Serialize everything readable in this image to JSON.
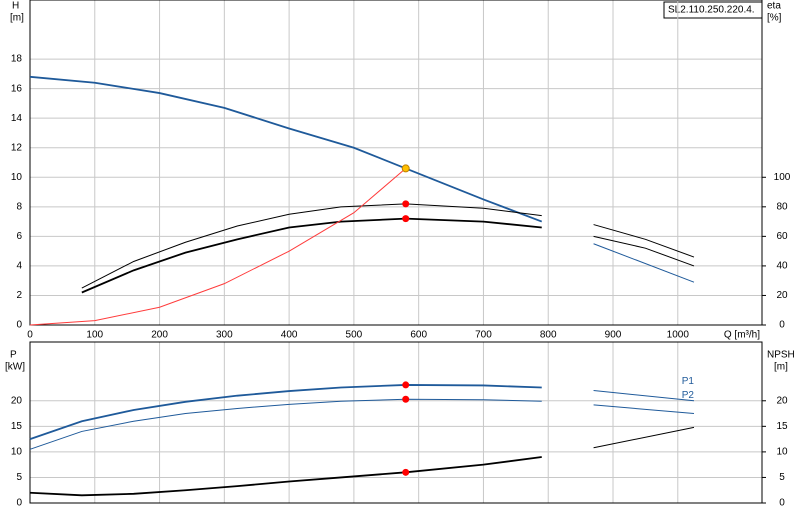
{
  "chart_data": [
    {
      "type": "line",
      "model": "SL2.110.250.220.4.",
      "y_label": "H",
      "y_unit": "[m]",
      "y2_label": "eta",
      "y2_unit": "[%]",
      "x_label": "Q [m³/h]",
      "xlim": [
        0,
        1130
      ],
      "xticks": [
        0,
        100,
        200,
        300,
        400,
        500,
        600,
        700,
        800,
        900,
        1000
      ],
      "show_xtick_labels": true,
      "ylim": [
        0,
        22
      ],
      "yticks": [
        0,
        2,
        4,
        6,
        8,
        10,
        12,
        14,
        16,
        18
      ],
      "y2lim": [
        0,
        220
      ],
      "y2ticks": [
        0,
        20,
        40,
        60,
        80,
        100
      ],
      "grid": true,
      "series": [
        {
          "color": "#1f5a9a",
          "width": 1.8,
          "x": [
            0,
            100,
            200,
            300,
            400,
            500,
            580,
            700,
            790
          ],
          "values": [
            16.8,
            16.4,
            15.7,
            14.7,
            13.3,
            12.0,
            10.6,
            8.5,
            7.0
          ]
        },
        {
          "color": "#000000",
          "width": 1,
          "axis": "y2",
          "x": [
            80,
            160,
            240,
            320,
            400,
            480,
            580,
            700,
            790
          ],
          "values": [
            25,
            43,
            56,
            67,
            75,
            80,
            82,
            79,
            74
          ]
        },
        {
          "color": "#000000",
          "width": 1.8,
          "axis": "y2",
          "x": [
            80,
            160,
            240,
            320,
            400,
            480,
            580,
            700,
            790
          ],
          "values": [
            22,
            37,
            49,
            58,
            66,
            70,
            72,
            70,
            66
          ]
        },
        {
          "color": "#ff3b3b",
          "width": 1,
          "x": [
            0,
            100,
            200,
            300,
            400,
            500,
            580
          ],
          "values": [
            0,
            0.3,
            1.2,
            2.8,
            5.0,
            7.6,
            10.6
          ]
        },
        {
          "color": "#000000",
          "width": 1,
          "x": [
            870,
            950,
            1025
          ],
          "values": [
            6.8,
            5.8,
            4.6
          ]
        },
        {
          "color": "#000000",
          "width": 1,
          "x": [
            870,
            950,
            1025
          ],
          "values": [
            6.0,
            5.2,
            4.0
          ]
        },
        {
          "color": "#1f5a9a",
          "width": 1,
          "x": [
            870,
            1025
          ],
          "values": [
            5.5,
            2.9
          ]
        }
      ],
      "markers": [
        {
          "x": 580,
          "y": 10.6,
          "color": "#ffc000"
        },
        {
          "x": 580,
          "y": 82,
          "color": "#ff0000",
          "axis": "y2"
        },
        {
          "x": 580,
          "y": 72,
          "color": "#ff0000",
          "axis": "y2"
        }
      ]
    },
    {
      "type": "line",
      "y_label": "P",
      "y_unit": "[kW]",
      "y2_label": "NPSH",
      "y2_unit": "[m]",
      "xlim": [
        0,
        1130
      ],
      "xticks": [
        0,
        100,
        200,
        300,
        400,
        500,
        600,
        700,
        800,
        900,
        1000
      ],
      "show_xtick_labels": false,
      "ylim": [
        0,
        31.5
      ],
      "yticks": [
        0,
        5,
        10,
        15,
        20
      ],
      "y2lim": [
        0,
        31.5
      ],
      "y2ticks": [
        0,
        5,
        10,
        15,
        20
      ],
      "grid": true,
      "series": [
        {
          "name": "P1",
          "color": "#1f5a9a",
          "width": 1.8,
          "x": [
            0,
            80,
            160,
            240,
            320,
            400,
            480,
            580,
            700,
            790
          ],
          "values": [
            12.5,
            16,
            18.2,
            19.8,
            21,
            21.9,
            22.6,
            23.1,
            23.0,
            22.6
          ]
        },
        {
          "color": "#1f5a9a",
          "width": 1,
          "x": [
            870,
            1025
          ],
          "values": [
            22,
            20
          ]
        },
        {
          "name": "P2",
          "color": "#1f5a9a",
          "width": 1,
          "x": [
            0,
            80,
            160,
            240,
            320,
            400,
            480,
            580,
            700,
            790
          ],
          "values": [
            10.5,
            14,
            16,
            17.5,
            18.5,
            19.3,
            19.9,
            20.3,
            20.2,
            19.9
          ]
        },
        {
          "color": "#1f5a9a",
          "width": 1,
          "x": [
            870,
            1025
          ],
          "values": [
            19.2,
            17.5
          ]
        },
        {
          "color": "#000000",
          "width": 1.8,
          "axis": "y2",
          "x": [
            0,
            80,
            160,
            240,
            320,
            400,
            480,
            580,
            700,
            790
          ],
          "values": [
            2,
            1.5,
            1.8,
            2.5,
            3.3,
            4.2,
            5.0,
            6.0,
            7.5,
            9.0
          ]
        },
        {
          "color": "#000000",
          "width": 1,
          "axis": "y2",
          "x": [
            870,
            1025
          ],
          "values": [
            10.8,
            14.8
          ]
        }
      ],
      "markers": [
        {
          "x": 580,
          "y": 23.1,
          "color": "#ff0000"
        },
        {
          "x": 580,
          "y": 20.3,
          "color": "#ff0000"
        },
        {
          "x": 580,
          "y": 6.0,
          "color": "#ff0000",
          "axis": "y2"
        }
      ]
    }
  ]
}
